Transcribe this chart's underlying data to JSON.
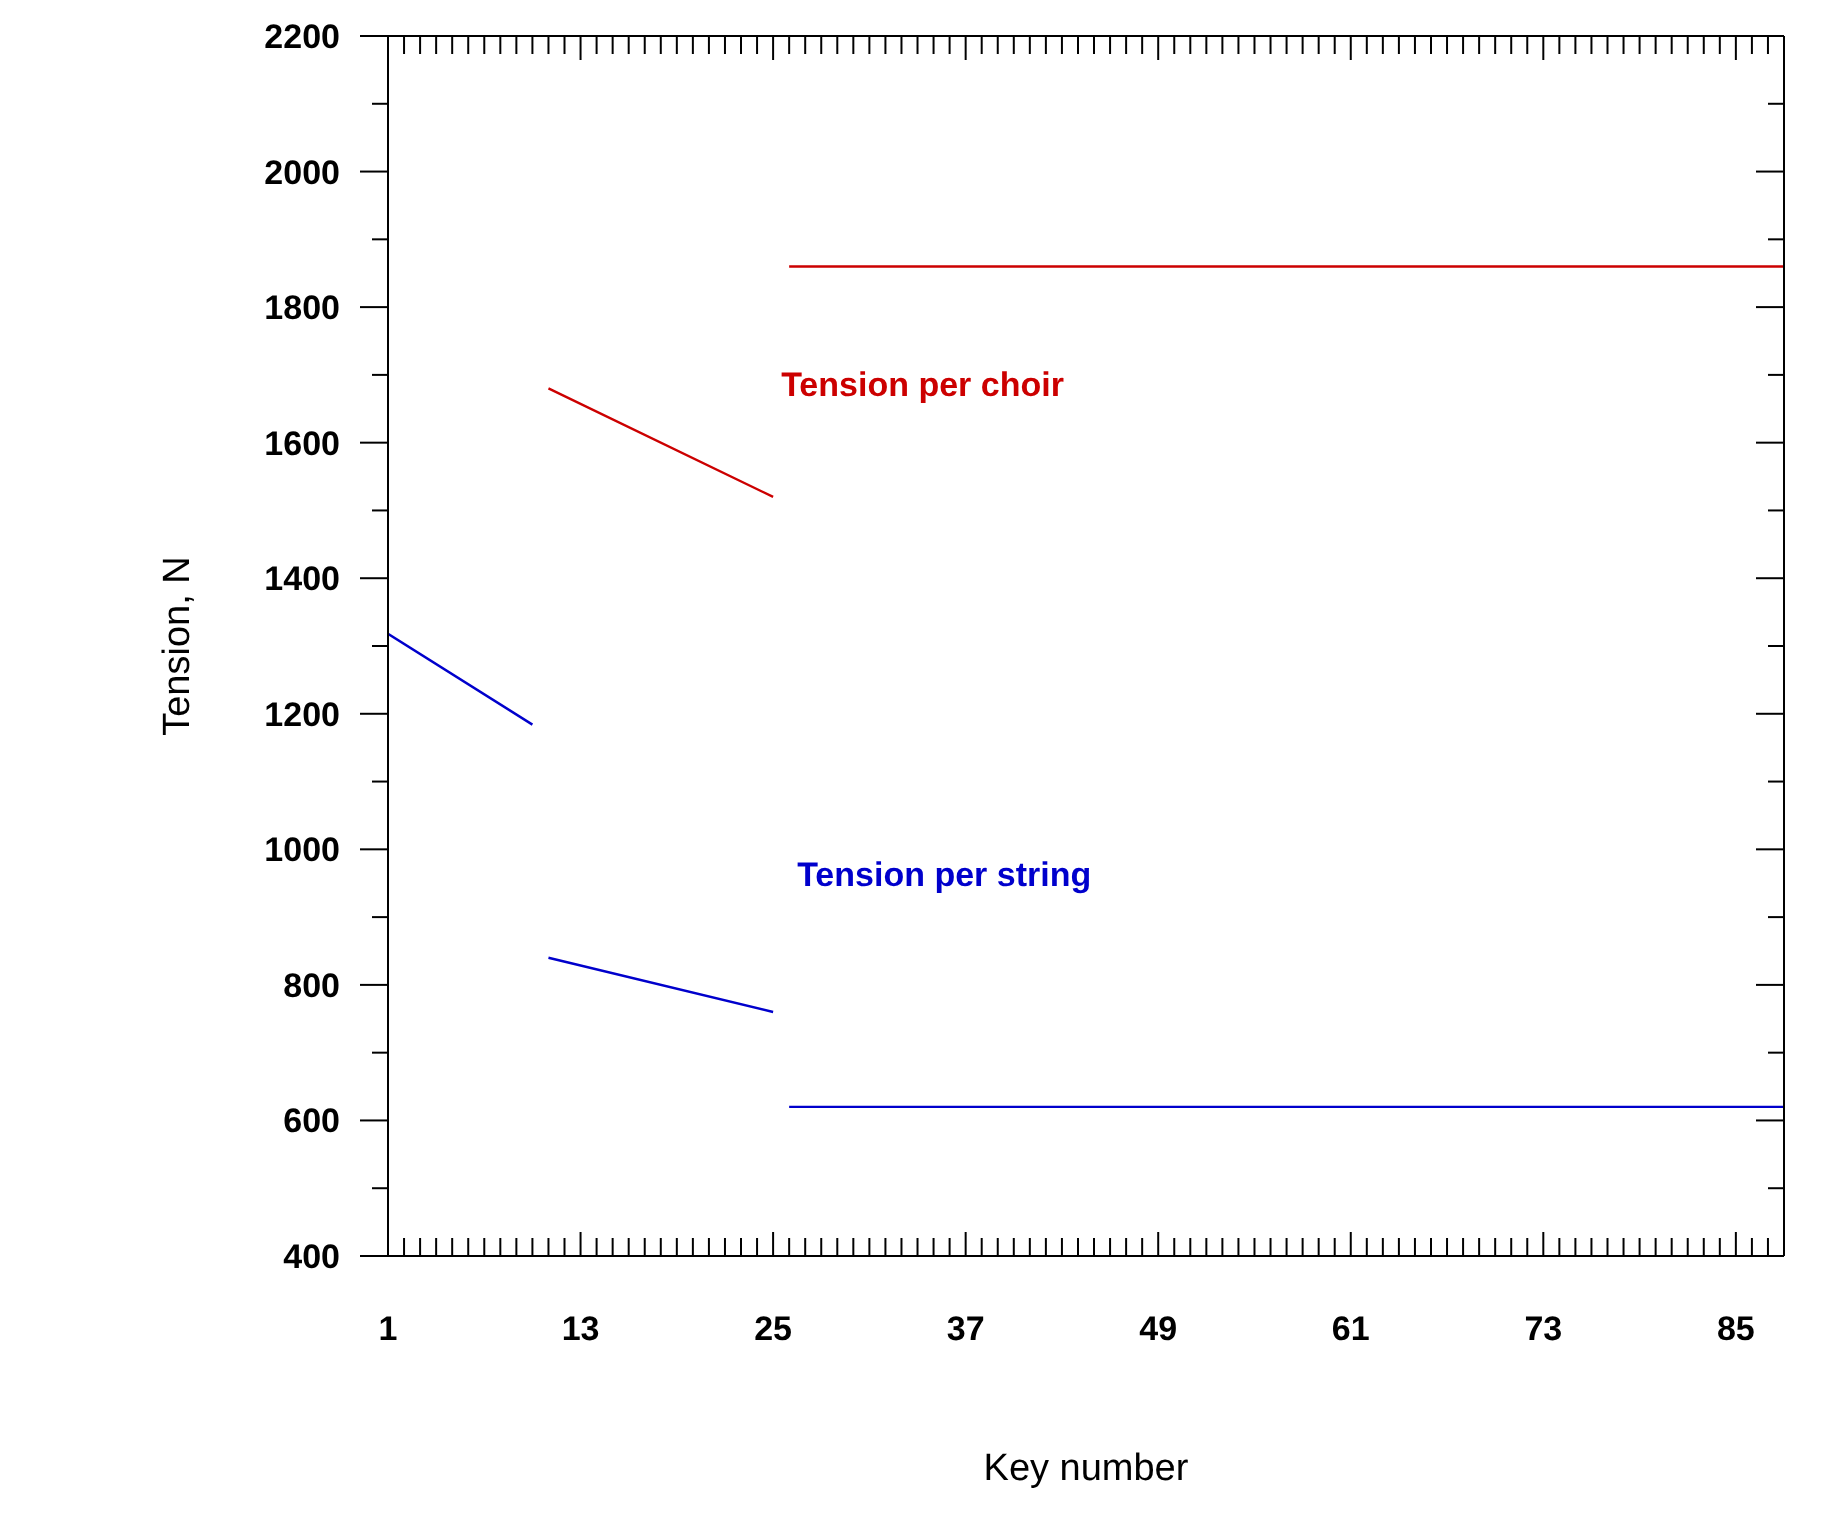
{
  "chart_data": {
    "type": "line",
    "xlabel": "Key number",
    "ylabel": "Tension, N",
    "legend": false,
    "grid": false,
    "xlim": [
      1,
      88
    ],
    "ylim": [
      400,
      2200
    ],
    "xticks": [
      1,
      {
        "value": 2,
        "label": null
      },
      {
        "value": 3,
        "label": null
      },
      {
        "value": 4,
        "label": null
      },
      {
        "value": 5,
        "label": null
      },
      {
        "value": 6,
        "label": null
      },
      {
        "value": 7,
        "label": null
      },
      {
        "value": 8,
        "label": null
      },
      {
        "value": 9,
        "label": null
      },
      {
        "value": 10,
        "label": null
      },
      {
        "value": 11,
        "label": null
      },
      {
        "value": 12,
        "label": null
      },
      13,
      {
        "value": 14,
        "label": null
      },
      {
        "value": 15,
        "label": null
      },
      {
        "value": 16,
        "label": null
      },
      {
        "value": 17,
        "label": null
      },
      {
        "value": 18,
        "label": null
      },
      {
        "value": 19,
        "label": null
      },
      {
        "value": 20,
        "label": null
      },
      {
        "value": 21,
        "label": null
      },
      {
        "value": 22,
        "label": null
      },
      {
        "value": 23,
        "label": null
      },
      {
        "value": 24,
        "label": null
      },
      25,
      {
        "value": 26,
        "label": null
      },
      {
        "value": 27,
        "label": null
      },
      {
        "value": 28,
        "label": null
      },
      {
        "value": 29,
        "label": null
      },
      {
        "value": 30,
        "label": null
      },
      {
        "value": 31,
        "label": null
      },
      {
        "value": 32,
        "label": null
      },
      {
        "value": 33,
        "label": null
      },
      {
        "value": 34,
        "label": null
      },
      {
        "value": 35,
        "label": null
      },
      {
        "value": 36,
        "label": null
      },
      37,
      {
        "value": 38,
        "label": null
      },
      {
        "value": 39,
        "label": null
      },
      {
        "value": 40,
        "label": null
      },
      {
        "value": 41,
        "label": null
      },
      {
        "value": 42,
        "label": null
      },
      {
        "value": 43,
        "label": null
      },
      {
        "value": 44,
        "label": null
      },
      {
        "value": 45,
        "label": null
      },
      {
        "value": 46,
        "label": null
      },
      {
        "value": 47,
        "label": null
      },
      {
        "value": 48,
        "label": null
      },
      49,
      {
        "value": 50,
        "label": null
      },
      {
        "value": 51,
        "label": null
      },
      {
        "value": 52,
        "label": null
      },
      {
        "value": 53,
        "label": null
      },
      {
        "value": 54,
        "label": null
      },
      {
        "value": 55,
        "label": null
      },
      {
        "value": 56,
        "label": null
      },
      {
        "value": 57,
        "label": null
      },
      {
        "value": 58,
        "label": null
      },
      {
        "value": 59,
        "label": null
      },
      {
        "value": 60,
        "label": null
      },
      61,
      {
        "value": 62,
        "label": null
      },
      {
        "value": 63,
        "label": null
      },
      {
        "value": 64,
        "label": null
      },
      {
        "value": 65,
        "label": null
      },
      {
        "value": 66,
        "label": null
      },
      {
        "value": 67,
        "label": null
      },
      {
        "value": 68,
        "label": null
      },
      {
        "value": 69,
        "label": null
      },
      {
        "value": 70,
        "label": null
      },
      {
        "value": 71,
        "label": null
      },
      {
        "value": 72,
        "label": null
      },
      73,
      {
        "value": 74,
        "label": null
      },
      {
        "value": 75,
        "label": null
      },
      {
        "value": 76,
        "label": null
      },
      {
        "value": 77,
        "label": null
      },
      {
        "value": 78,
        "label": null
      },
      {
        "value": 79,
        "label": null
      },
      {
        "value": 80,
        "label": null
      },
      {
        "value": 81,
        "label": null
      },
      {
        "value": 82,
        "label": null
      },
      {
        "value": 83,
        "label": null
      },
      {
        "value": 84,
        "label": null
      },
      85,
      {
        "value": 86,
        "label": null
      },
      {
        "value": 87,
        "label": null
      },
      {
        "value": 88,
        "label": null
      }
    ],
    "yticks": [
      400,
      {
        "value": 500,
        "label": null
      },
      600,
      {
        "value": 700,
        "label": null
      },
      800,
      {
        "value": 900,
        "label": null
      },
      1000,
      {
        "value": 1100,
        "label": null
      },
      1200,
      {
        "value": 1300,
        "label": null
      },
      1400,
      {
        "value": 1500,
        "label": null
      },
      1600,
      {
        "value": 1700,
        "label": null
      },
      1800,
      {
        "value": 1900,
        "label": null
      },
      2000,
      {
        "value": 2100,
        "label": null
      },
      2200
    ],
    "series": [
      {
        "name": "Tension per choir",
        "color": "#cc0000",
        "x": [
          11,
          25,
          25.5,
          26,
          88
        ],
        "values": [
          1680,
          1520,
          null,
          1860,
          1860
        ]
      },
      {
        "name": "Tension per string",
        "color": "#0000cc",
        "x": [
          1,
          10,
          10.5,
          11,
          25,
          25.5,
          26,
          88
        ],
        "values": [
          1318,
          1184,
          null,
          840,
          760,
          null,
          620,
          620
        ]
      }
    ]
  }
}
